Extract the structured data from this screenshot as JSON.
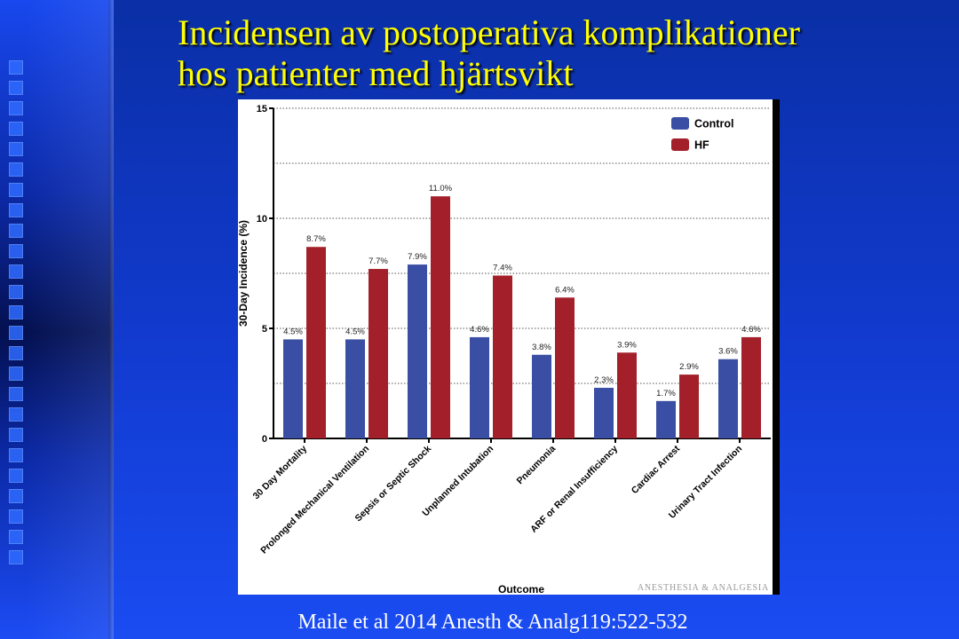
{
  "slide": {
    "title_line1": "Incidensen av postoperativa komplikationer",
    "title_line2": "hos patienter med hjärtsvikt",
    "citation": "Maile et al 2014 Anesth & Analg119:522-532"
  },
  "watermark": "ANESTHESIA & ANALGESIA",
  "chart_data": {
    "type": "bar",
    "xlabel": "Outcome",
    "ylabel": "30-Day Incidence (%)",
    "ylim": [
      0,
      15
    ],
    "yticks": [
      0,
      5,
      10,
      15
    ],
    "grid": "dotted horizontal lines every 2.5",
    "legend_position": "top-right",
    "categories": [
      "30 Day Mortality",
      "Prolonged Mechanical Ventilation",
      "Sepsis or Septic Shock",
      "Unplanned Intubation",
      "Pneumonia",
      "ARF or Renal Insufficiency",
      "Cardiac Arrest",
      "Urinary Tract Infection"
    ],
    "series": [
      {
        "name": "Control",
        "color": "#3a4fa3",
        "values": [
          4.5,
          4.5,
          7.9,
          4.6,
          3.8,
          2.3,
          1.7,
          3.6
        ],
        "labels": [
          "4.5%",
          "4.5%",
          "7.9%",
          "4.6%",
          "3.8%",
          "2.3%",
          "1.7%",
          "3.6%"
        ]
      },
      {
        "name": "HF",
        "color": "#a3202a",
        "values": [
          8.7,
          7.7,
          11.0,
          7.4,
          6.4,
          3.9,
          2.9,
          4.6
        ],
        "labels": [
          "8.7%",
          "7.7%",
          "11.0%",
          "7.4%",
          "6.4%",
          "3.9%",
          "2.9%",
          "4.6%"
        ]
      }
    ]
  }
}
